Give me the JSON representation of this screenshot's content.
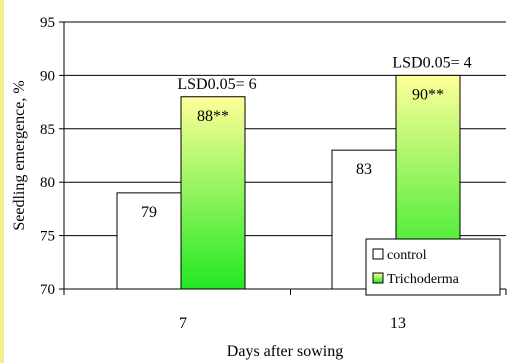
{
  "chart_data": {
    "type": "bar",
    "categories": [
      "7",
      "13"
    ],
    "series": [
      {
        "name": "control",
        "values": [
          79,
          83
        ],
        "labels": [
          "79",
          "83"
        ]
      },
      {
        "name": "Trichoderma",
        "values": [
          88,
          90
        ],
        "labels": [
          "88**",
          "90**"
        ]
      }
    ],
    "annotations": [
      "LSD0.05= 6",
      "LSD0.05= 4"
    ],
    "xlabel": "Days after sowing",
    "ylabel": "Seedling emergence, %",
    "ylim": [
      70,
      95
    ],
    "yticks": [
      "70",
      "75",
      "80",
      "85",
      "90",
      "95"
    ],
    "grid": true,
    "legend_position": "bottom-right",
    "colors": {
      "control": "#ffffff",
      "trichoderma_top": "#ffff99",
      "trichoderma_bottom": "#22e822",
      "axis": "#000000",
      "grid": "#000000",
      "edge_strip": "#f2ef8a"
    }
  }
}
